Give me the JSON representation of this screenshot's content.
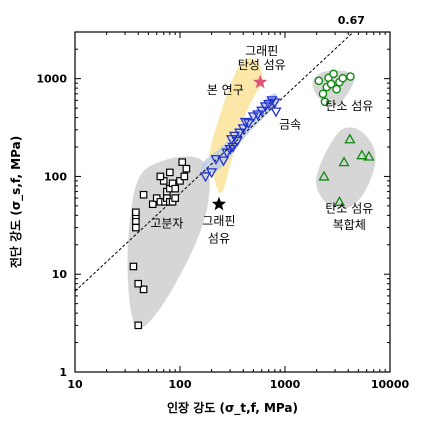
{
  "chart_data": {
    "type": "scatter",
    "xlabel": "인장 강도 (σ_t,f, MPa)",
    "ylabel": "전단 강도 (σ_s,f, MPa)",
    "x_scale": "log",
    "y_scale": "log",
    "xlim": [
      10,
      10000
    ],
    "ylim": [
      1,
      3000
    ],
    "x_ticks": [
      "10",
      "100",
      "1000",
      "10000"
    ],
    "y_ticks": [
      "1",
      "10",
      "100",
      "1000"
    ],
    "grid": false,
    "reference_line": {
      "label": "0.67",
      "slope": 0.67,
      "style": "dashed"
    },
    "series": [
      {
        "marker": "square",
        "color": "#000000",
        "points": [
          [
            40,
            3
          ],
          [
            45,
            7
          ],
          [
            40,
            8
          ],
          [
            36,
            12
          ],
          [
            38,
            30
          ],
          [
            38,
            35
          ],
          [
            38,
            40
          ],
          [
            38,
            43
          ],
          [
            45,
            65
          ],
          [
            55,
            52
          ],
          [
            60,
            60
          ],
          [
            65,
            55
          ],
          [
            72,
            55
          ],
          [
            75,
            60
          ],
          [
            80,
            55
          ],
          [
            85,
            55
          ],
          [
            90,
            60
          ],
          [
            75,
            70
          ],
          [
            80,
            75
          ],
          [
            70,
            90
          ],
          [
            85,
            85
          ],
          [
            90,
            75
          ],
          [
            65,
            100
          ],
          [
            80,
            110
          ],
          [
            100,
            90
          ],
          [
            110,
            100
          ],
          [
            105,
            140
          ],
          [
            115,
            120
          ]
        ]
      },
      {
        "marker": "triangle-down",
        "color": "#2233cc",
        "points": [
          [
            175,
            100
          ],
          [
            200,
            110
          ],
          [
            220,
            150
          ],
          [
            260,
            145
          ],
          [
            280,
            175
          ],
          [
            300,
            190
          ],
          [
            320,
            200
          ],
          [
            310,
            240
          ],
          [
            330,
            260
          ],
          [
            350,
            230
          ],
          [
            370,
            280
          ],
          [
            400,
            310
          ],
          [
            420,
            360
          ],
          [
            450,
            350
          ],
          [
            500,
            410
          ],
          [
            550,
            430
          ],
          [
            600,
            470
          ],
          [
            650,
            520
          ],
          [
            700,
            550
          ],
          [
            750,
            600
          ],
          [
            800,
            570
          ],
          [
            820,
            460
          ]
        ]
      },
      {
        "marker": "circle",
        "color": "#118811",
        "points": [
          [
            2100,
            950
          ],
          [
            2300,
            700
          ],
          [
            2400,
            580
          ],
          [
            2500,
            820
          ],
          [
            2600,
            1020
          ],
          [
            2750,
            880
          ],
          [
            2900,
            1120
          ],
          [
            3100,
            780
          ],
          [
            3300,
            920
          ],
          [
            3550,
            1010
          ],
          [
            4200,
            1050
          ]
        ]
      },
      {
        "marker": "triangle-up",
        "color": "#118811",
        "points": [
          [
            2350,
            100
          ],
          [
            3300,
            55
          ],
          [
            3650,
            140
          ],
          [
            4150,
            240
          ],
          [
            5400,
            165
          ],
          [
            6300,
            160
          ]
        ]
      },
      {
        "marker": "star",
        "color": "#000000",
        "points": [
          [
            235,
            52
          ]
        ]
      },
      {
        "marker": "star",
        "color": "#dd5577",
        "points": [
          [
            580,
            920
          ]
        ]
      }
    ],
    "annotations": [
      "그래핀",
      "탄성 섬유",
      "본 연구",
      "금속",
      "탄소 섬유",
      "고분자",
      "그래핀",
      "섬유",
      "탄소 섬유",
      "복합체"
    ]
  }
}
